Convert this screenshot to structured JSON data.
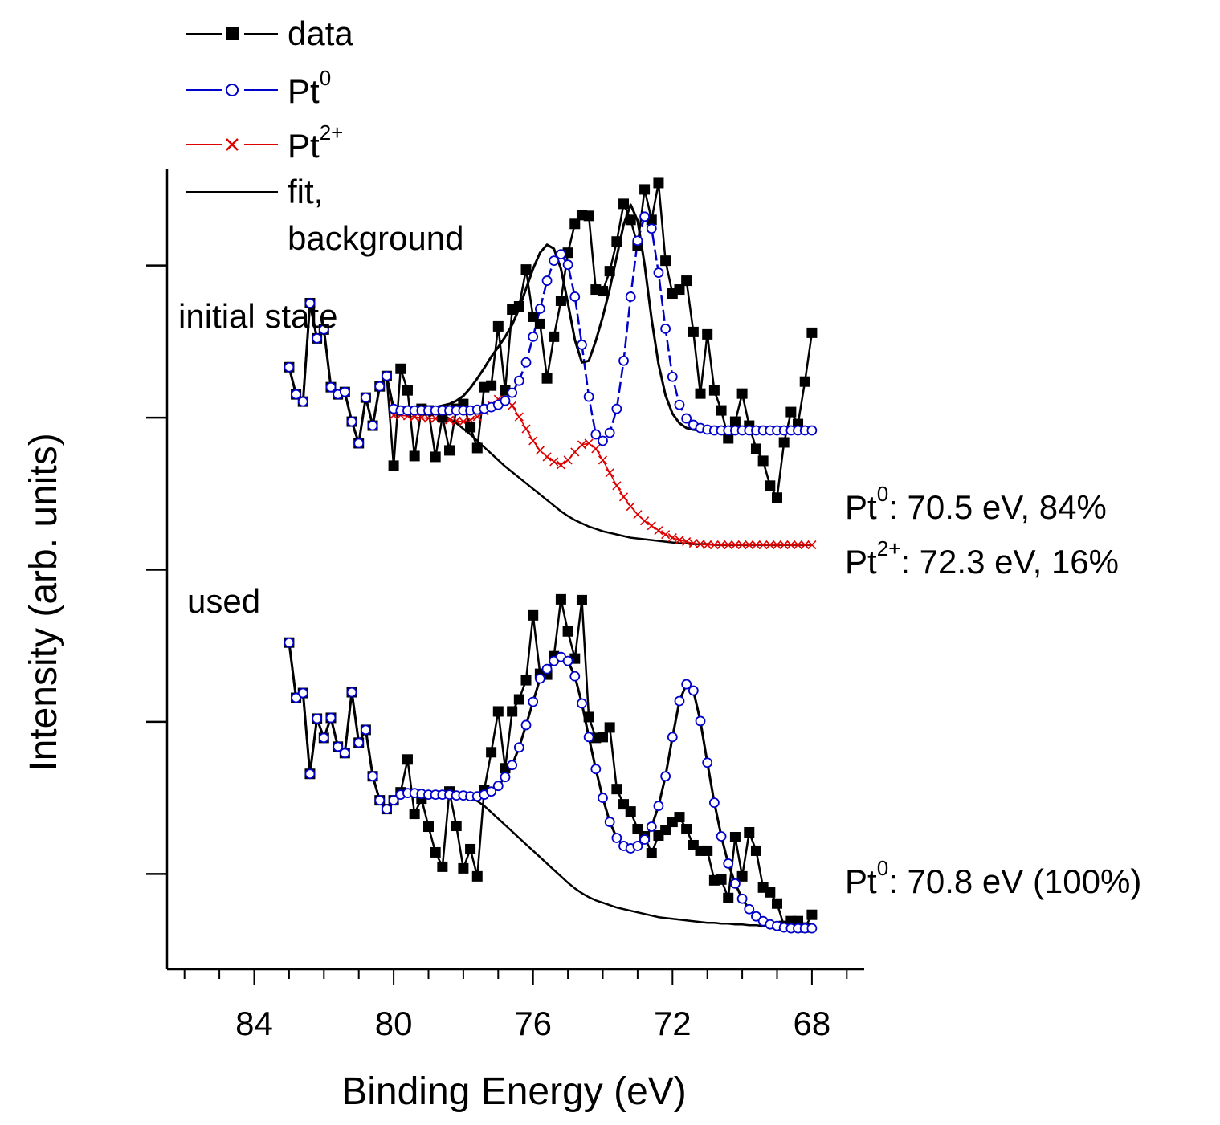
{
  "chart_data": {
    "type": "line",
    "title": "",
    "xlabel": "Binding Energy (eV)",
    "ylabel": "Intensity (arb. units)",
    "xlim": [
      86.5,
      66.5
    ],
    "ylim": [
      0,
      1
    ],
    "x_ticks": [
      84,
      80,
      76,
      72,
      68
    ],
    "x_tick_labels": [
      "84",
      "80",
      "76",
      "72",
      "68"
    ],
    "y_tick_labels": [],
    "legend": {
      "placement": "top-left",
      "entries": [
        {
          "key": "data",
          "label": "data",
          "sup": "",
          "color": "#000000",
          "marker": "filled-square"
        },
        {
          "key": "pt0",
          "label": "Pt",
          "sup": "0",
          "color": "#0000cc",
          "marker": "open-circle"
        },
        {
          "key": "pt2",
          "label": "Pt",
          "sup": "2+",
          "color": "#dd0000",
          "marker": "cross"
        },
        {
          "key": "fit",
          "label": "fit,",
          "label2": "background",
          "color": "#000000",
          "marker": "none"
        }
      ]
    },
    "panels": [
      {
        "name": "initial state",
        "annotations": [
          {
            "label": "Pt",
            "sup": "0",
            "text": ":  70.5 eV, 84%"
          },
          {
            "label": "Pt",
            "sup": "2+",
            "text": ": 72.3 eV, 16%"
          }
        ],
        "data_x": [
          83.0,
          82.8,
          82.6,
          82.4,
          82.2,
          82.0,
          81.8,
          81.6,
          81.4,
          81.2,
          81.0,
          80.8,
          80.6,
          80.4,
          80.2,
          80.0,
          79.8,
          79.6,
          79.4,
          79.2,
          79.0,
          78.8,
          78.6,
          78.4,
          78.2,
          78.0,
          77.8,
          77.6,
          77.4,
          77.2,
          77.0,
          76.8,
          76.6,
          76.4,
          76.2,
          76.0,
          75.8,
          75.6,
          75.4,
          75.2,
          75.0,
          74.8,
          74.6,
          74.4,
          74.2,
          74.0,
          73.8,
          73.6,
          73.4,
          73.2,
          73.0,
          72.8,
          72.6,
          72.4,
          72.2,
          72.0,
          71.8,
          71.6,
          71.4,
          71.2,
          71.0,
          70.8,
          70.6,
          70.4,
          70.2,
          70.0,
          69.8,
          69.6,
          69.4,
          69.2,
          69.0,
          68.8,
          68.6,
          68.4,
          68.2,
          68.0
        ],
        "data_y": [
          0.752,
          0.718,
          0.709,
          0.832,
          0.788,
          0.799,
          0.727,
          0.718,
          0.721,
          0.684,
          0.657,
          0.714,
          0.679,
          0.728,
          0.741,
          0.629,
          0.75,
          0.723,
          0.641,
          0.7,
          0.698,
          0.64,
          0.69,
          0.648,
          0.7,
          0.706,
          0.677,
          0.651,
          0.727,
          0.729,
          0.803,
          0.723,
          0.824,
          0.828,
          0.874,
          0.815,
          0.806,
          0.738,
          0.79,
          0.835,
          0.895,
          0.931,
          0.942,
          0.941,
          0.849,
          0.847,
          0.872,
          0.909,
          0.956,
          0.936,
          0.904,
          0.974,
          0.936,
          0.982,
          0.885,
          0.844,
          0.849,
          0.86,
          0.796,
          0.719,
          0.793,
          0.723,
          0.698,
          0.663,
          0.684,
          0.719,
          0.679,
          0.65,
          0.635,
          0.604,
          0.589,
          0.658,
          0.696,
          0.681,
          0.734,
          0.795
        ],
        "pt0_y": [
          0.752,
          0.718,
          0.709,
          0.832,
          0.788,
          0.799,
          0.727,
          0.718,
          0.721,
          0.684,
          0.657,
          0.714,
          0.679,
          0.728,
          0.741,
          0.7,
          0.698,
          0.698,
          0.698,
          0.698,
          0.698,
          0.698,
          0.698,
          0.698,
          0.698,
          0.698,
          0.698,
          0.699,
          0.7,
          0.702,
          0.705,
          0.71,
          0.72,
          0.735,
          0.758,
          0.79,
          0.825,
          0.86,
          0.885,
          0.893,
          0.88,
          0.84,
          0.78,
          0.715,
          0.668,
          0.66,
          0.67,
          0.7,
          0.76,
          0.84,
          0.91,
          0.94,
          0.925,
          0.87,
          0.8,
          0.74,
          0.705,
          0.688,
          0.68,
          0.676,
          0.674,
          0.673,
          0.673,
          0.673,
          0.673,
          0.673,
          0.673,
          0.673,
          0.673,
          0.673,
          0.673,
          0.673,
          0.673,
          0.673,
          0.673,
          0.673
        ],
        "pt2_y": [
          0.752,
          0.718,
          0.709,
          0.832,
          0.788,
          0.799,
          0.727,
          0.718,
          0.721,
          0.684,
          0.657,
          0.714,
          0.679,
          0.728,
          0.741,
          0.692,
          0.692,
          0.691,
          0.69,
          0.689,
          0.688,
          0.688,
          0.687,
          0.686,
          0.685,
          0.684,
          0.686,
          0.69,
          0.697,
          0.705,
          0.712,
          0.713,
          0.704,
          0.69,
          0.675,
          0.66,
          0.648,
          0.64,
          0.634,
          0.63,
          0.636,
          0.646,
          0.655,
          0.657,
          0.65,
          0.636,
          0.62,
          0.604,
          0.59,
          0.578,
          0.568,
          0.56,
          0.554,
          0.548,
          0.543,
          0.539,
          0.536,
          0.534,
          0.532,
          0.531,
          0.53,
          0.53,
          0.53,
          0.53,
          0.53,
          0.53,
          0.53,
          0.53,
          0.53,
          0.53,
          0.53,
          0.53,
          0.53,
          0.53,
          0.53,
          0.53
        ],
        "fit_y": [
          0.752,
          0.718,
          0.709,
          0.832,
          0.788,
          0.799,
          0.727,
          0.718,
          0.721,
          0.684,
          0.657,
          0.714,
          0.679,
          0.728,
          0.741,
          0.7,
          0.699,
          0.699,
          0.7,
          0.7,
          0.701,
          0.702,
          0.704,
          0.706,
          0.71,
          0.716,
          0.726,
          0.738,
          0.751,
          0.765,
          0.777,
          0.79,
          0.805,
          0.825,
          0.85,
          0.875,
          0.895,
          0.905,
          0.9,
          0.875,
          0.832,
          0.786,
          0.758,
          0.76,
          0.785,
          0.815,
          0.85,
          0.89,
          0.93,
          0.955,
          0.935,
          0.88,
          0.812,
          0.756,
          0.717,
          0.694,
          0.682,
          0.676,
          0.674,
          0.673,
          0.673,
          0.673,
          0.673,
          0.673,
          0.673,
          0.673,
          0.673,
          0.673,
          0.673,
          0.673,
          0.673,
          0.673,
          0.673,
          0.673,
          0.673,
          0.673
        ],
        "background_y": [
          0.752,
          0.718,
          0.709,
          0.832,
          0.788,
          0.799,
          0.727,
          0.718,
          0.721,
          0.684,
          0.657,
          0.714,
          0.679,
          0.728,
          0.741,
          0.7,
          0.698,
          0.698,
          0.698,
          0.698,
          0.697,
          0.695,
          0.692,
          0.688,
          0.682,
          0.675,
          0.668,
          0.66,
          0.652,
          0.644,
          0.636,
          0.628,
          0.621,
          0.614,
          0.607,
          0.6,
          0.593,
          0.586,
          0.579,
          0.572,
          0.566,
          0.561,
          0.557,
          0.553,
          0.55,
          0.547,
          0.545,
          0.543,
          0.541,
          0.539,
          0.538,
          0.537,
          0.536,
          0.535,
          0.534,
          0.533,
          0.532,
          0.532,
          0.531,
          0.531,
          0.531,
          0.53,
          0.53,
          0.53,
          0.53,
          0.53,
          0.53,
          0.53,
          0.53,
          0.53,
          0.53,
          0.53,
          0.53,
          0.53,
          0.53,
          0.53
        ]
      },
      {
        "name": "used",
        "annotations": [
          {
            "label": "Pt",
            "sup": "0",
            "text": ": 70.8 eV (100%)"
          }
        ],
        "data_x": [
          83.0,
          82.8,
          82.6,
          82.4,
          82.2,
          82.0,
          81.8,
          81.6,
          81.4,
          81.2,
          81.0,
          80.8,
          80.6,
          80.4,
          80.2,
          80.0,
          79.8,
          79.6,
          79.4,
          79.2,
          79.0,
          78.8,
          78.6,
          78.4,
          78.2,
          78.0,
          77.8,
          77.6,
          77.4,
          77.2,
          77.0,
          76.8,
          76.6,
          76.4,
          76.2,
          76.0,
          75.8,
          75.6,
          75.4,
          75.2,
          75.0,
          74.8,
          74.6,
          74.4,
          74.2,
          74.0,
          73.8,
          73.6,
          73.4,
          73.2,
          73.0,
          72.8,
          72.6,
          72.4,
          72.2,
          72.0,
          71.8,
          71.6,
          71.4,
          71.2,
          71.0,
          70.8,
          70.6,
          70.4,
          70.2,
          70.0,
          69.8,
          69.6,
          69.4,
          69.2,
          69.0,
          68.8,
          68.6,
          68.4,
          68.2,
          68.0
        ],
        "data_y": [
          0.408,
          0.339,
          0.345,
          0.244,
          0.313,
          0.289,
          0.314,
          0.278,
          0.27,
          0.346,
          0.283,
          0.299,
          0.241,
          0.211,
          0.2,
          0.211,
          0.221,
          0.262,
          0.194,
          0.213,
          0.178,
          0.146,
          0.128,
          0.222,
          0.179,
          0.126,
          0.15,
          0.116,
          0.224,
          0.271,
          0.322,
          0.251,
          0.322,
          0.337,
          0.361,
          0.442,
          0.369,
          0.368,
          0.391,
          0.462,
          0.422,
          0.388,
          0.461,
          0.315,
          0.289,
          0.29,
          0.302,
          0.225,
          0.206,
          0.197,
          0.175,
          0.166,
          0.145,
          0.167,
          0.174,
          0.184,
          0.19,
          0.175,
          0.155,
          0.148,
          0.148,
          0.111,
          0.112,
          0.089,
          0.165,
          0.116,
          0.171,
          0.148,
          0.102,
          0.096,
          0.082,
          0.054,
          0.06,
          0.06,
          0.052,
          0.068
        ],
        "pt0_y": [
          0.408,
          0.339,
          0.345,
          0.244,
          0.313,
          0.289,
          0.314,
          0.278,
          0.27,
          0.346,
          0.283,
          0.299,
          0.241,
          0.211,
          0.2,
          0.211,
          0.218,
          0.22,
          0.22,
          0.219,
          0.218,
          0.218,
          0.218,
          0.218,
          0.217,
          0.217,
          0.216,
          0.216,
          0.218,
          0.222,
          0.229,
          0.24,
          0.255,
          0.277,
          0.305,
          0.334,
          0.363,
          0.375,
          0.385,
          0.39,
          0.385,
          0.366,
          0.332,
          0.29,
          0.25,
          0.214,
          0.184,
          0.164,
          0.154,
          0.151,
          0.154,
          0.162,
          0.178,
          0.204,
          0.241,
          0.29,
          0.335,
          0.356,
          0.348,
          0.31,
          0.258,
          0.208,
          0.166,
          0.132,
          0.107,
          0.088,
          0.075,
          0.066,
          0.06,
          0.056,
          0.054,
          0.052,
          0.051,
          0.051,
          0.051,
          0.051
        ],
        "fit_y": [
          0.408,
          0.339,
          0.345,
          0.244,
          0.313,
          0.289,
          0.314,
          0.278,
          0.27,
          0.346,
          0.283,
          0.299,
          0.241,
          0.211,
          0.2,
          0.211,
          0.218,
          0.22,
          0.22,
          0.219,
          0.218,
          0.218,
          0.218,
          0.218,
          0.217,
          0.217,
          0.216,
          0.216,
          0.218,
          0.222,
          0.229,
          0.24,
          0.255,
          0.277,
          0.305,
          0.334,
          0.363,
          0.375,
          0.385,
          0.39,
          0.385,
          0.366,
          0.332,
          0.29,
          0.25,
          0.214,
          0.184,
          0.164,
          0.154,
          0.151,
          0.154,
          0.162,
          0.178,
          0.204,
          0.241,
          0.29,
          0.335,
          0.356,
          0.348,
          0.31,
          0.258,
          0.208,
          0.166,
          0.132,
          0.107,
          0.088,
          0.075,
          0.066,
          0.06,
          0.056,
          0.054,
          0.052,
          0.051,
          0.051,
          0.051,
          0.051
        ],
        "background_y": [
          0.408,
          0.339,
          0.345,
          0.244,
          0.313,
          0.289,
          0.314,
          0.278,
          0.27,
          0.346,
          0.283,
          0.299,
          0.241,
          0.211,
          0.2,
          0.211,
          0.218,
          0.22,
          0.22,
          0.219,
          0.218,
          0.218,
          0.218,
          0.218,
          0.217,
          0.216,
          0.214,
          0.21,
          0.204,
          0.196,
          0.188,
          0.18,
          0.172,
          0.164,
          0.156,
          0.148,
          0.14,
          0.132,
          0.124,
          0.116,
          0.108,
          0.101,
          0.095,
          0.09,
          0.086,
          0.083,
          0.08,
          0.077,
          0.075,
          0.073,
          0.071,
          0.069,
          0.067,
          0.065,
          0.064,
          0.063,
          0.062,
          0.061,
          0.06,
          0.059,
          0.058,
          0.058,
          0.057,
          0.057,
          0.056,
          0.056,
          0.055,
          0.055,
          0.054,
          0.054,
          0.053,
          0.053,
          0.052,
          0.052,
          0.052,
          0.051
        ]
      }
    ]
  }
}
